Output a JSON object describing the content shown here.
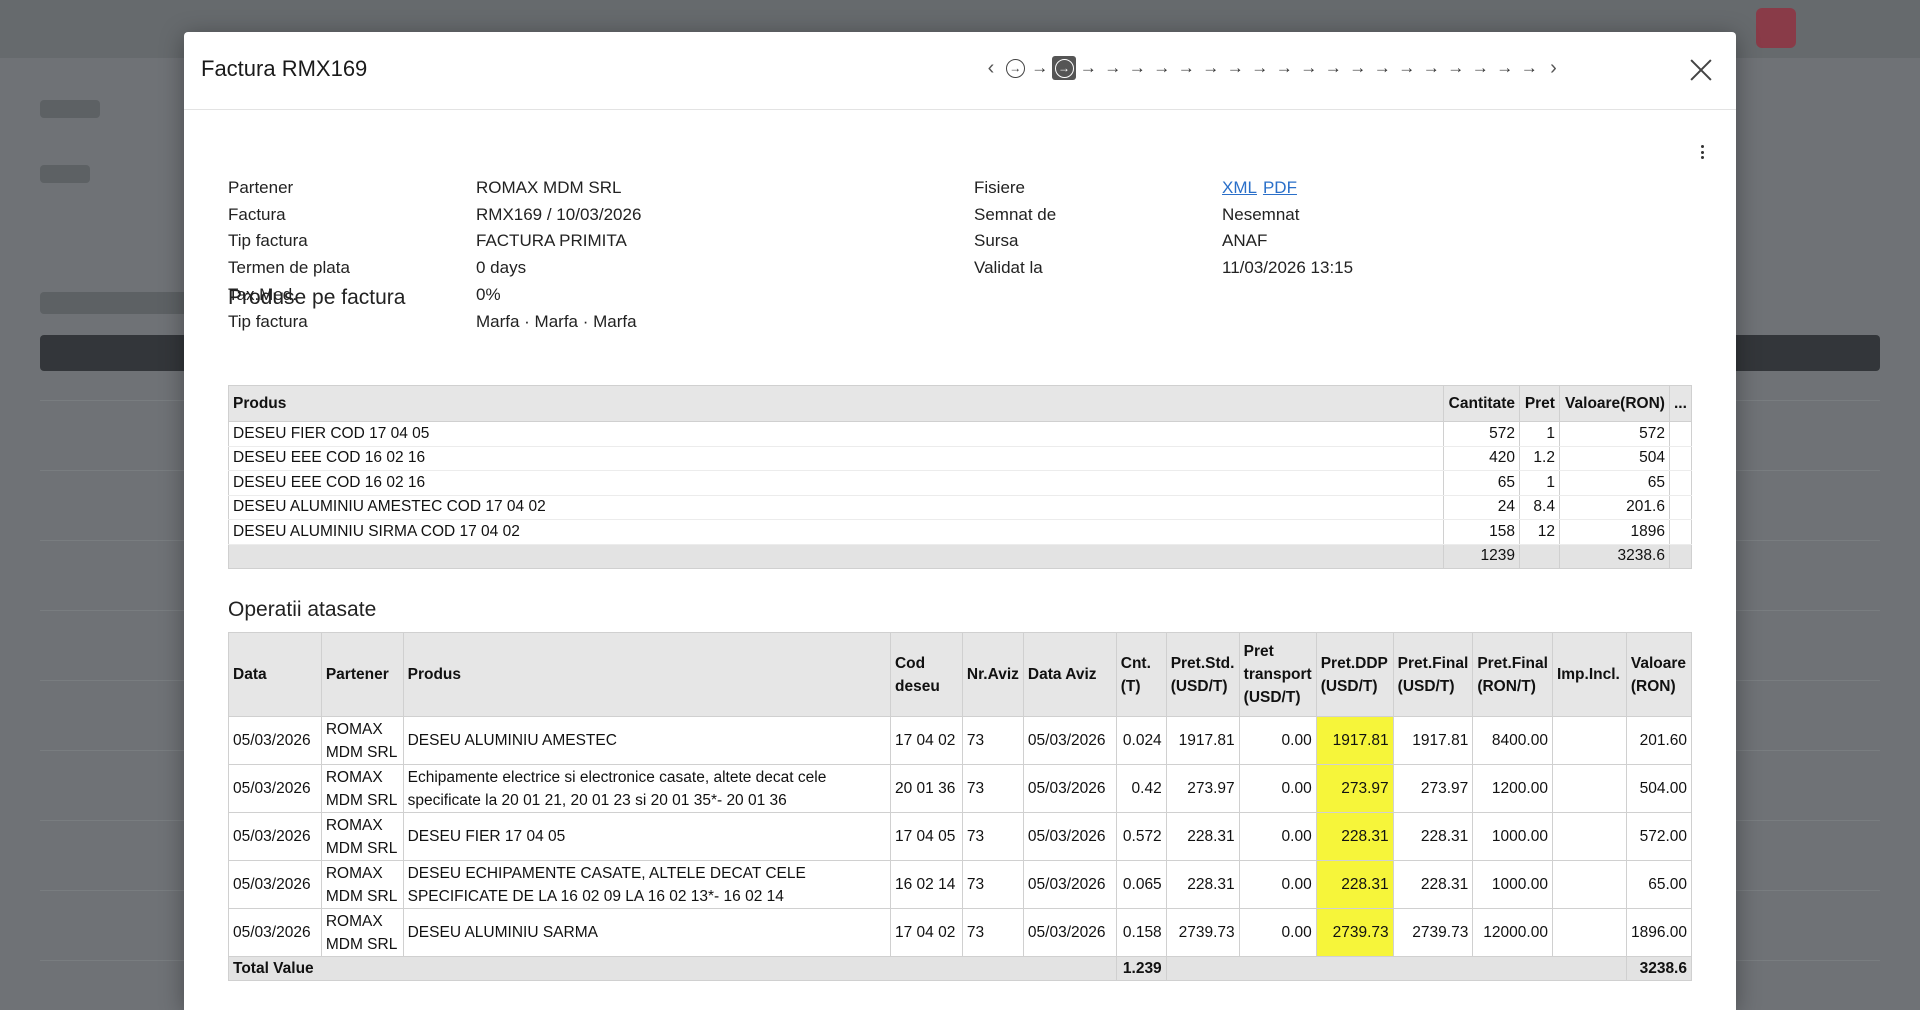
{
  "modal": {
    "title": "Factura RMX169",
    "pager_steps": 21,
    "active_step": 2
  },
  "info_left": [
    {
      "label": "Partener",
      "value": "ROMAX MDM SRL"
    },
    {
      "label": "Factura",
      "value": "RMX169 / 10/03/2026"
    },
    {
      "label": "Tip factura",
      "value": "FACTURA PRIMITA"
    },
    {
      "label": "Termen de plata",
      "value": "0 days"
    },
    {
      "label": "Tax.Med.",
      "value": "0%"
    },
    {
      "label": "Tip factura",
      "value": "Marfa · Marfa · Marfa"
    }
  ],
  "info_right": {
    "files_label": "Fisiere",
    "files": [
      "XML",
      "PDF"
    ],
    "rows": [
      {
        "label": "Semnat de",
        "value": "Nesemnat"
      },
      {
        "label": "Sursa",
        "value": "ANAF"
      },
      {
        "label": "Validat la",
        "value": "11/03/2026 13:15"
      }
    ]
  },
  "products": {
    "title": "Produse pe factura",
    "headers": [
      "Produs",
      "Cantitate",
      "Pret",
      "Valoare(RON)",
      "..."
    ],
    "rows": [
      [
        "DESEU FIER COD 17 04 05",
        "572",
        "1",
        "572"
      ],
      [
        "DESEU EEE COD 16 02 16",
        "420",
        "1.2",
        "504"
      ],
      [
        "DESEU EEE COD 16 02 16",
        "65",
        "1",
        "65"
      ],
      [
        "DESEU ALUMINIU AMESTEC COD 17 04 02",
        "24",
        "8.4",
        "201.6"
      ],
      [
        "DESEU ALUMINIU SIRMA COD 17 04 02",
        "158",
        "12",
        "1896"
      ]
    ],
    "total_qty": "1239",
    "total_value": "3238.6"
  },
  "operations": {
    "title": "Operatii atasate",
    "headers": [
      "Data",
      "Partener",
      "Produs",
      "Cod deseu",
      "Nr.Aviz",
      "Data Aviz",
      "Cnt. (T)",
      "Pret.Std. (USD/T)",
      "Pret transport (USD/T)",
      "Pret.DDP (USD/T)",
      "Pret.Final (USD/T)",
      "Pret.Final (RON/T)",
      "Imp.Incl.",
      "Valoare (RON)"
    ],
    "rows": [
      [
        "05/03/2026",
        "ROMAX MDM SRL",
        "DESEU ALUMINIU AMESTEC",
        "17 04 02",
        "73",
        "05/03/2026",
        "0.024",
        "1917.81",
        "0.00",
        "1917.81",
        "1917.81",
        "8400.00",
        "",
        "201.60"
      ],
      [
        "05/03/2026",
        "ROMAX MDM SRL",
        "Echipamente electrice si electronice casate, altete decat cele specificate la 20 01 21, 20 01 23 si 20 01 35*- 20 01 36",
        "20 01 36",
        "73",
        "05/03/2026",
        "0.42",
        "273.97",
        "0.00",
        "273.97",
        "273.97",
        "1200.00",
        "",
        "504.00"
      ],
      [
        "05/03/2026",
        "ROMAX MDM SRL",
        "DESEU FIER 17 04 05",
        "17 04 05",
        "73",
        "05/03/2026",
        "0.572",
        "228.31",
        "0.00",
        "228.31",
        "228.31",
        "1000.00",
        "",
        "572.00"
      ],
      [
        "05/03/2026",
        "ROMAX MDM SRL",
        "DESEU ECHIPAMENTE CASATE, ALTELE DECAT CELE SPECIFICATE DE LA 16 02 09 LA 16 02 13*- 16 02 14",
        "16 02 14",
        "73",
        "05/03/2026",
        "0.065",
        "228.31",
        "0.00",
        "228.31",
        "228.31",
        "1000.00",
        "",
        "65.00"
      ],
      [
        "05/03/2026",
        "ROMAX MDM SRL",
        "DESEU ALUMINIU SARMA",
        "17 04 02",
        "73",
        "05/03/2026",
        "0.158",
        "2739.73",
        "0.00",
        "2739.73",
        "2739.73",
        "12000.00",
        "",
        "1896.00"
      ]
    ],
    "total_label": "Total Value",
    "total_qty": "1.239",
    "total_value": "3238.6",
    "highlight_color": "#f6f53a"
  }
}
